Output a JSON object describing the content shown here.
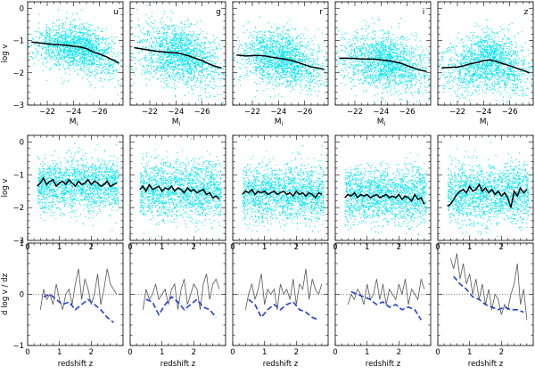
{
  "chart_data": {
    "type": "scatter",
    "title": "",
    "band_labels": [
      "u",
      "g",
      "r",
      "i",
      "z"
    ],
    "colors": {
      "scatter": "#00e5ee",
      "median": "#000000",
      "model": "#1f3fd6",
      "data_line": "#555555"
    },
    "row1": {
      "xlabel": "M",
      "xlabel_sub": "i",
      "ylabel": "log v",
      "xlim": [
        -20.5,
        -27.8
      ],
      "ylim": [
        -3,
        0.2
      ],
      "xticks": [
        -22,
        -24,
        -26
      ],
      "xtick_labels": [
        "−22",
        "−24",
        "−26"
      ],
      "yticks": [
        -3,
        -2,
        -1,
        0
      ],
      "ytick_labels": [
        "−3",
        "−2",
        "−1",
        "0"
      ],
      "scatter": {
        "center_x": -24.3,
        "spread_x": 1.6,
        "spread_y": [
          0.35,
          0.45,
          0.42,
          0.42,
          0.45
        ]
      },
      "median_x": [
        -20.8,
        -21.5,
        -22.0,
        -22.5,
        -23.0,
        -23.5,
        -24.0,
        -24.5,
        -25.0,
        -25.5,
        -26.0,
        -26.5,
        -27.0,
        -27.5
      ],
      "median_series": [
        {
          "name": "u",
          "values": [
            -1.05,
            -1.08,
            -1.1,
            -1.12,
            -1.13,
            -1.15,
            -1.18,
            -1.2,
            -1.25,
            -1.35,
            -1.42,
            -1.5,
            -1.6,
            -1.7
          ]
        },
        {
          "name": "g",
          "values": [
            -1.22,
            -1.27,
            -1.3,
            -1.33,
            -1.35,
            -1.37,
            -1.38,
            -1.42,
            -1.48,
            -1.55,
            -1.62,
            -1.72,
            -1.8,
            -1.85
          ]
        },
        {
          "name": "r",
          "values": [
            -1.45,
            -1.48,
            -1.47,
            -1.46,
            -1.48,
            -1.52,
            -1.55,
            -1.58,
            -1.62,
            -1.68,
            -1.75,
            -1.82,
            -1.85,
            -1.9
          ]
        },
        {
          "name": "i",
          "values": [
            -1.55,
            -1.55,
            -1.56,
            -1.57,
            -1.57,
            -1.58,
            -1.6,
            -1.62,
            -1.66,
            -1.7,
            -1.78,
            -1.85,
            -1.92,
            -1.96
          ]
        },
        {
          "name": "z",
          "values": [
            -1.85,
            -1.83,
            -1.82,
            -1.78,
            -1.72,
            -1.68,
            -1.62,
            -1.6,
            -1.65,
            -1.72,
            -1.78,
            -1.85,
            -1.92,
            -2.0
          ]
        }
      ]
    },
    "row2": {
      "ylabel": "log v",
      "xlim": [
        0,
        3
      ],
      "ylim": [
        -3,
        0.2
      ],
      "xticks": [
        0,
        1,
        2
      ],
      "yticks": [
        -3,
        -2,
        -1,
        0
      ],
      "ytick_labels": [
        "−3",
        "−2",
        "−1",
        "0"
      ],
      "scatter": {
        "center_y": [
          -1.3,
          -1.45,
          -1.55,
          -1.6,
          -1.55
        ],
        "spread_y": [
          0.4,
          0.45,
          0.42,
          0.42,
          0.45
        ]
      },
      "median_x": [
        0.3,
        0.4,
        0.5,
        0.6,
        0.7,
        0.8,
        0.9,
        1.0,
        1.1,
        1.2,
        1.3,
        1.4,
        1.5,
        1.6,
        1.7,
        1.8,
        1.9,
        2.0,
        2.1,
        2.2,
        2.3,
        2.4,
        2.5,
        2.6,
        2.7,
        2.8
      ],
      "median_series": [
        {
          "name": "u",
          "values": [
            -1.35,
            -1.25,
            -1.1,
            -1.3,
            -1.2,
            -1.15,
            -1.35,
            -1.25,
            -1.2,
            -1.3,
            -1.15,
            -1.25,
            -1.35,
            -1.2,
            -1.3,
            -1.25,
            -1.15,
            -1.3,
            -1.2,
            -1.25,
            -1.35,
            -1.3,
            -1.2,
            -1.35,
            -1.3,
            -1.25
          ]
        },
        {
          "name": "g",
          "values": [
            -1.45,
            -1.35,
            -1.5,
            -1.3,
            -1.45,
            -1.4,
            -1.35,
            -1.5,
            -1.4,
            -1.45,
            -1.35,
            -1.5,
            -1.4,
            -1.45,
            -1.55,
            -1.4,
            -1.5,
            -1.45,
            -1.55,
            -1.5,
            -1.45,
            -1.6,
            -1.55,
            -1.7,
            -1.65,
            -1.75
          ]
        },
        {
          "name": "r",
          "values": [
            -1.6,
            -1.5,
            -1.55,
            -1.45,
            -1.6,
            -1.5,
            -1.55,
            -1.5,
            -1.6,
            -1.55,
            -1.5,
            -1.6,
            -1.55,
            -1.5,
            -1.6,
            -1.55,
            -1.65,
            -1.5,
            -1.6,
            -1.55,
            -1.65,
            -1.55,
            -1.6,
            -1.7,
            -1.55,
            -1.6
          ]
        },
        {
          "name": "i",
          "values": [
            -1.7,
            -1.6,
            -1.65,
            -1.55,
            -1.7,
            -1.6,
            -1.65,
            -1.6,
            -1.7,
            -1.65,
            -1.6,
            -1.7,
            -1.65,
            -1.6,
            -1.7,
            -1.65,
            -1.7,
            -1.6,
            -1.75,
            -1.65,
            -1.7,
            -1.8,
            -1.6,
            -1.75,
            -1.7,
            -1.9
          ]
        },
        {
          "name": "z",
          "values": [
            -1.95,
            -1.9,
            -1.75,
            -1.6,
            -1.5,
            -1.45,
            -1.55,
            -1.35,
            -1.5,
            -1.45,
            -1.3,
            -1.5,
            -1.4,
            -1.55,
            -1.45,
            -1.6,
            -1.5,
            -1.65,
            -1.55,
            -1.7,
            -2.0,
            -1.5,
            -1.65,
            -1.4,
            -1.55,
            -1.45
          ]
        }
      ]
    },
    "row3": {
      "xlabel": "redshift z",
      "ylabel": "d log v / dz",
      "xlim": [
        0,
        3
      ],
      "ylim": [
        -1,
        1
      ],
      "xticks": [
        0,
        1,
        2
      ],
      "yticks": [
        -1,
        0,
        1
      ],
      "ytick_labels": [
        "−1",
        "0",
        "1"
      ],
      "data_x": [
        0.4,
        0.5,
        0.6,
        0.7,
        0.8,
        0.9,
        1.0,
        1.1,
        1.2,
        1.3,
        1.4,
        1.5,
        1.6,
        1.7,
        1.8,
        1.9,
        2.0,
        2.1,
        2.2,
        2.3,
        2.4,
        2.5,
        2.6,
        2.7,
        2.8
      ],
      "data_series": [
        {
          "name": "u",
          "values": [
            -0.3,
            0.1,
            -0.1,
            0.0,
            -0.2,
            0.2,
            -0.1,
            -0.3,
            0.0,
            0.1,
            -0.2,
            0.2,
            0.5,
            -0.1,
            0.3,
            0.1,
            -0.2,
            0.0,
            0.4,
            -0.2,
            0.1,
            0.5,
            0.2,
            0.1,
            0.0
          ]
        },
        {
          "name": "g",
          "values": [
            -0.3,
            0.1,
            -0.1,
            0.0,
            0.2,
            -0.1,
            0.0,
            0.1,
            -0.2,
            0.1,
            0.2,
            -0.3,
            0.1,
            0.3,
            -0.2,
            0.0,
            0.2,
            0.1,
            -0.3,
            0.2,
            0.4,
            -0.1,
            0.2,
            0.3,
            0.1
          ]
        },
        {
          "name": "r",
          "values": [
            -0.3,
            0.0,
            0.2,
            -0.1,
            0.1,
            0.4,
            -0.2,
            0.1,
            0.0,
            0.1,
            -0.3,
            0.2,
            0.0,
            0.1,
            -0.1,
            0.3,
            -0.2,
            0.2,
            0.1,
            0.5,
            -0.1,
            0.3,
            0.1,
            0.0,
            0.2
          ]
        },
        {
          "name": "i",
          "values": [
            -0.2,
            0.0,
            -0.1,
            0.1,
            0.0,
            -0.2,
            0.2,
            -0.1,
            0.0,
            0.3,
            -0.1,
            0.2,
            -0.2,
            0.1,
            0.0,
            -0.1,
            0.2,
            0.0,
            0.3,
            -0.2,
            0.1,
            0.0,
            -0.1,
            0.3,
            0.1
          ]
        },
        {
          "name": "z",
          "values": [
            0.7,
            0.5,
            0.8,
            0.3,
            0.6,
            0.2,
            0.4,
            0.0,
            0.3,
            -0.1,
            0.2,
            -0.2,
            0.1,
            -0.3,
            0.0,
            -0.1,
            -0.4,
            -0.2,
            -0.3,
            0.0,
            0.2,
            0.6,
            -0.2,
            0.1,
            -0.5
          ]
        }
      ],
      "model_x": [
        0.5,
        0.7,
        0.9,
        1.1,
        1.3,
        1.5,
        1.7,
        1.9,
        2.1,
        2.3,
        2.5,
        2.7
      ],
      "model_series": [
        {
          "name": "u",
          "values": [
            -0.05,
            0.0,
            -0.1,
            -0.2,
            -0.15,
            -0.3,
            -0.2,
            -0.1,
            -0.2,
            -0.3,
            -0.45,
            -0.55
          ]
        },
        {
          "name": "g",
          "values": [
            -0.1,
            -0.15,
            -0.4,
            -0.2,
            -0.05,
            -0.15,
            -0.3,
            -0.2,
            -0.1,
            -0.25,
            -0.3,
            -0.45
          ]
        },
        {
          "name": "r",
          "values": [
            -0.1,
            -0.2,
            -0.45,
            -0.3,
            -0.2,
            -0.3,
            -0.2,
            -0.15,
            -0.3,
            -0.35,
            -0.45,
            -0.5
          ]
        },
        {
          "name": "i",
          "values": [
            0.05,
            0.0,
            -0.05,
            -0.1,
            -0.2,
            -0.15,
            -0.25,
            -0.2,
            -0.3,
            -0.25,
            -0.3,
            -0.5
          ]
        },
        {
          "name": "z",
          "values": [
            0.35,
            0.2,
            0.1,
            -0.05,
            -0.1,
            -0.2,
            -0.25,
            -0.3,
            -0.25,
            -0.3,
            -0.3,
            -0.35
          ]
        }
      ]
    }
  }
}
